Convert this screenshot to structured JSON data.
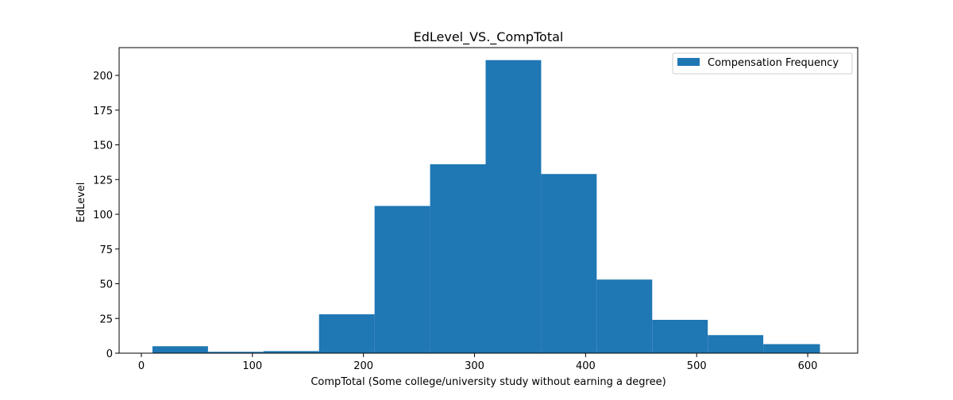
{
  "chart_data": {
    "type": "bar",
    "subtype": "histogram",
    "title": "EdLevel_VS._CompTotal",
    "xlabel": "CompTotal (Some college/university study without earning a degree)",
    "ylabel": "EdLevel",
    "xlim": [
      -20,
      645
    ],
    "ylim": [
      0,
      220
    ],
    "xticks": [
      0,
      100,
      200,
      300,
      400,
      500,
      600
    ],
    "yticks": [
      0,
      25,
      50,
      75,
      100,
      125,
      150,
      175,
      200
    ],
    "bin_edges": [
      10,
      60,
      110,
      160,
      210,
      260,
      310,
      360,
      410,
      460,
      510,
      560,
      611
    ],
    "series": [
      {
        "name": "Compensation Frequency",
        "color": "#1f77b4",
        "values": [
          5,
          1,
          1.5,
          28,
          106,
          136,
          211,
          129,
          53,
          24,
          13,
          6.5
        ]
      }
    ],
    "legend": {
      "position": "top-right",
      "entries": [
        "Compensation Frequency"
      ]
    },
    "grid": false
  }
}
